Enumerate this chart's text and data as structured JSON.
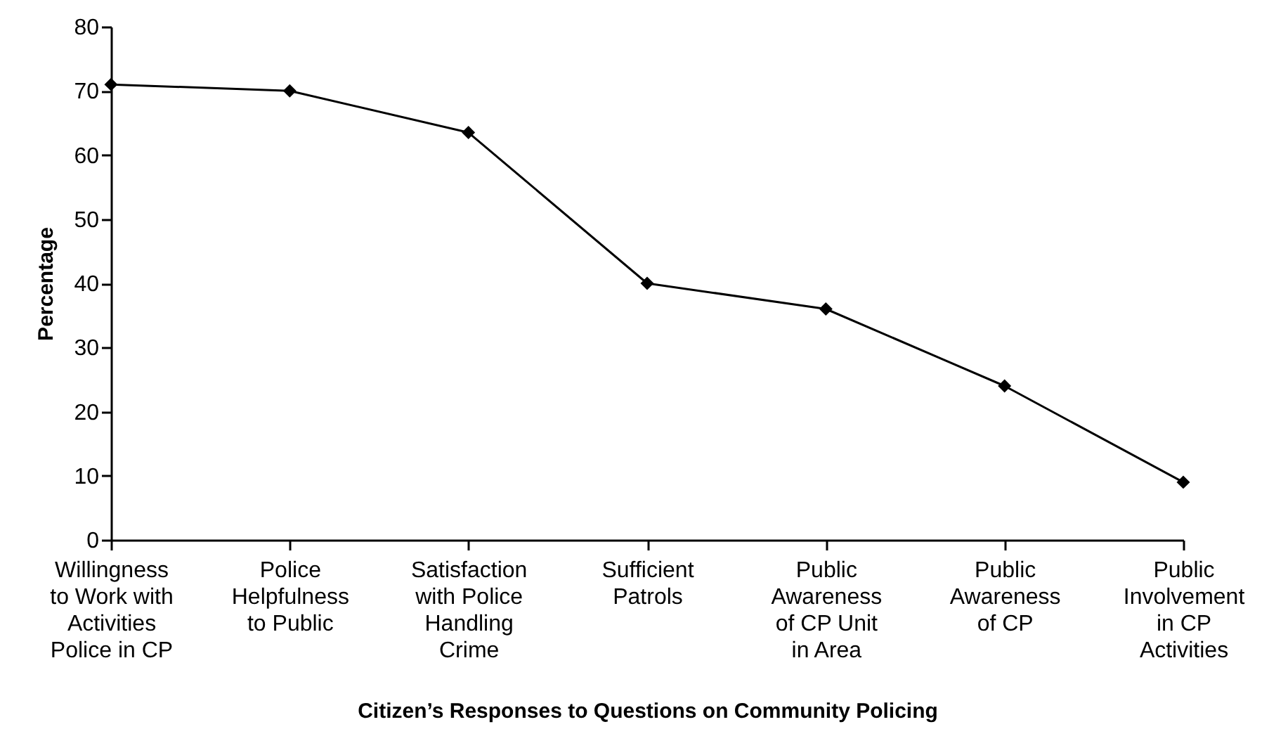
{
  "chart_data": {
    "type": "line",
    "xlabel": "Citizen’s Responses to Questions on Community Policing",
    "ylabel": "Percentage",
    "categories": [
      "Willingness\nto Work with\nActivities\nPolice in CP",
      "Police\nHelpfulness\nto Public",
      "Satisfaction\nwith Police\nHandling\nCrime",
      "Sufficient\nPatrols",
      "Public\nAwareness\nof CP Unit\nin Area",
      "Public\nAwareness\nof CP",
      "Public\nInvolvement\nin CP\nActivities"
    ],
    "series": [
      {
        "color": "#000000",
        "values": [
          71,
          70,
          63.5,
          40,
          36,
          24,
          9
        ]
      }
    ],
    "ylim": [
      0,
      80
    ],
    "yticks": [
      0,
      10,
      20,
      30,
      40,
      50,
      60,
      70,
      80
    ],
    "grid": false,
    "marker": "diamond",
    "line_style": "solid"
  }
}
